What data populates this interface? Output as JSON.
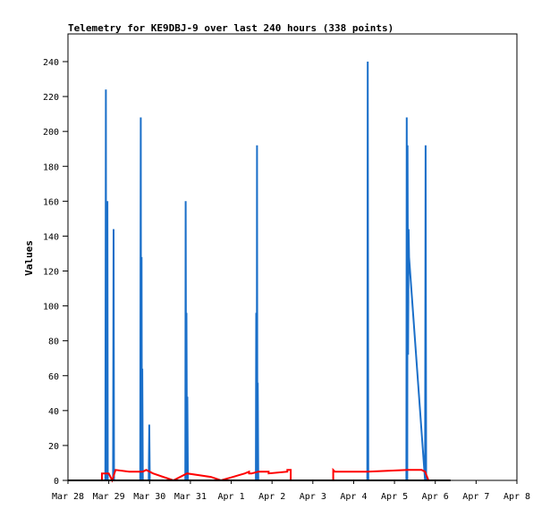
{
  "chart_data": {
    "type": "line",
    "title": "Telemetry for KE9DBJ-9 over last 240 hours (338 points)",
    "ylabel": "Values",
    "xlabel": "",
    "ylim": [
      0,
      255
    ],
    "yticks": [
      0,
      20,
      40,
      60,
      80,
      100,
      120,
      140,
      160,
      180,
      200,
      220,
      240
    ],
    "xlim": [
      0,
      240
    ],
    "xticks": [
      {
        "label": "Mar 28",
        "x": 0
      },
      {
        "label": "Mar 29",
        "x": 24
      },
      {
        "label": "Mar 30",
        "x": 48
      },
      {
        "label": "Mar 31",
        "x": 72
      },
      {
        "label": "Apr 1",
        "x": 96
      },
      {
        "label": "Apr 2",
        "x": 120
      },
      {
        "label": "Apr 3",
        "x": 144
      },
      {
        "label": "Apr 4",
        "x": 168
      },
      {
        "label": "Apr 5",
        "x": 192
      },
      {
        "label": "Apr 6",
        "x": 216
      },
      {
        "label": "Apr 7",
        "x": 240
      },
      {
        "label": "Apr 8",
        "x": 264
      }
    ],
    "grid": false,
    "series": [
      {
        "color": "#1a6fc9",
        "points": [
          [
            22.0,
            0
          ],
          [
            22.3,
            224
          ],
          [
            22.5,
            0
          ],
          [
            22.7,
            160
          ],
          [
            23.0,
            0
          ],
          [
            23.2,
            160
          ],
          [
            23.4,
            0
          ],
          [
            26.5,
            0
          ],
          [
            26.8,
            144
          ],
          [
            27.1,
            0
          ],
          [
            42.5,
            0
          ],
          [
            42.8,
            208
          ],
          [
            43.0,
            0
          ],
          [
            43.3,
            128
          ],
          [
            43.5,
            0
          ],
          [
            43.7,
            64
          ],
          [
            44.0,
            0
          ],
          [
            47.5,
            0
          ],
          [
            47.8,
            32
          ],
          [
            48.1,
            0
          ],
          [
            69.0,
            0
          ],
          [
            69.2,
            160
          ],
          [
            69.5,
            0
          ],
          [
            69.7,
            96
          ],
          [
            70.0,
            0
          ],
          [
            70.2,
            48
          ],
          [
            70.5,
            0
          ],
          [
            110.5,
            0
          ],
          [
            110.7,
            96
          ],
          [
            111.0,
            0
          ],
          [
            111.2,
            192
          ],
          [
            111.4,
            0
          ],
          [
            111.6,
            56
          ],
          [
            111.9,
            0
          ],
          [
            176.0,
            0
          ],
          [
            176.3,
            240
          ],
          [
            176.6,
            0
          ],
          [
            199.0,
            0
          ],
          [
            199.2,
            208
          ],
          [
            199.5,
            0
          ],
          [
            199.7,
            192
          ],
          [
            200.0,
            72
          ],
          [
            200.3,
            144
          ],
          [
            200.6,
            128
          ],
          [
            210.0,
            0
          ],
          [
            210.3,
            192
          ],
          [
            210.6,
            0
          ]
        ]
      },
      {
        "color": "#ff0000",
        "points": [
          [
            20.0,
            0
          ],
          [
            20.0,
            4
          ],
          [
            24.0,
            4
          ],
          [
            26.0,
            0
          ],
          [
            28.0,
            6
          ],
          [
            36.0,
            5
          ],
          [
            44.0,
            5
          ],
          [
            46.0,
            6
          ],
          [
            50.0,
            4
          ],
          [
            62.0,
            0
          ],
          [
            70.0,
            4
          ],
          [
            84.0,
            2
          ],
          [
            90.0,
            0
          ],
          [
            104.0,
            4
          ],
          [
            106.5,
            5
          ],
          [
            106.5,
            4
          ],
          [
            108.0,
            4
          ],
          [
            112.0,
            5
          ],
          [
            118.0,
            5
          ],
          [
            118.0,
            4
          ],
          [
            129.0,
            5
          ],
          [
            129.0,
            6
          ],
          [
            131.0,
            6
          ],
          [
            131.0,
            0
          ],
          [
            156.0,
            0
          ],
          [
            156.0,
            6
          ],
          [
            157.0,
            5
          ],
          [
            168.0,
            5
          ],
          [
            176.0,
            5
          ],
          [
            200.0,
            6
          ],
          [
            208.0,
            6
          ],
          [
            210.0,
            5
          ],
          [
            212.0,
            0
          ]
        ]
      },
      {
        "color": "#000000",
        "points": [
          [
            0,
            0
          ],
          [
            225,
            0
          ]
        ]
      }
    ]
  }
}
